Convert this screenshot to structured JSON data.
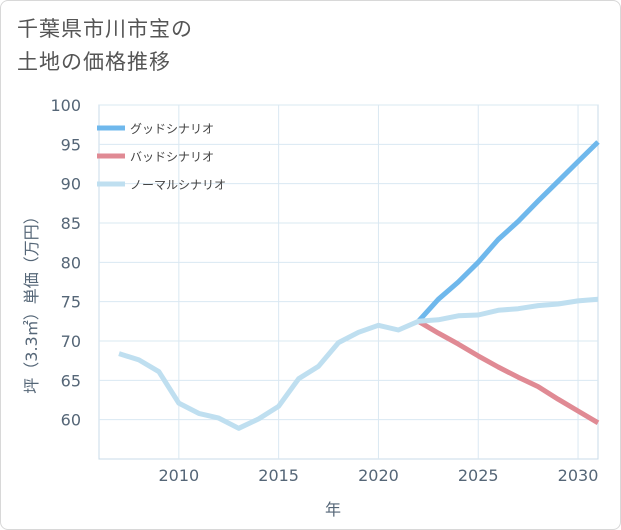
{
  "title": {
    "line1": "千葉県市川市宝の",
    "line2": "土地の価格推移"
  },
  "chart_data": {
    "type": "line",
    "xlabel": "年",
    "ylabel": "坪（3.3㎡）単価（万円）",
    "xlim": [
      2006,
      2031
    ],
    "ylim": [
      55,
      100
    ],
    "x_ticks": [
      2010,
      2015,
      2020,
      2025,
      2030
    ],
    "y_ticks": [
      60,
      65,
      70,
      75,
      80,
      85,
      90,
      95,
      100
    ],
    "grid": true,
    "legend_position": "top-left",
    "series": [
      {
        "name": "グッドシナリオ",
        "color": "#6fb8ec",
        "x": [
          2022,
          2023,
          2024,
          2025,
          2026,
          2027,
          2028,
          2029,
          2030,
          2031
        ],
        "y": [
          72.5,
          75.3,
          77.5,
          80.0,
          82.9,
          85.2,
          87.8,
          90.3,
          92.8,
          95.3
        ]
      },
      {
        "name": "バッドシナリオ",
        "color": "#e08a94",
        "x": [
          2022,
          2023,
          2024,
          2025,
          2026,
          2027,
          2028,
          2029,
          2030,
          2031
        ],
        "y": [
          72.5,
          71.0,
          69.6,
          68.1,
          66.7,
          65.4,
          64.2,
          62.6,
          61.1,
          59.6
        ]
      },
      {
        "name": "ノーマルシナリオ",
        "color": "#bfdff0",
        "x": [
          2007,
          2008,
          2009,
          2010,
          2011,
          2012,
          2013,
          2014,
          2015,
          2016,
          2017,
          2018,
          2019,
          2020,
          2021,
          2022,
          2023,
          2024,
          2025,
          2026,
          2027,
          2028,
          2029,
          2030,
          2031
        ],
        "y": [
          68.4,
          67.6,
          66.1,
          62.1,
          60.8,
          60.2,
          58.9,
          60.1,
          61.7,
          65.2,
          66.8,
          69.8,
          71.1,
          72.0,
          71.4,
          72.5,
          72.7,
          73.2,
          73.3,
          73.9,
          74.1,
          74.5,
          74.7,
          75.1,
          75.3
        ]
      }
    ]
  }
}
